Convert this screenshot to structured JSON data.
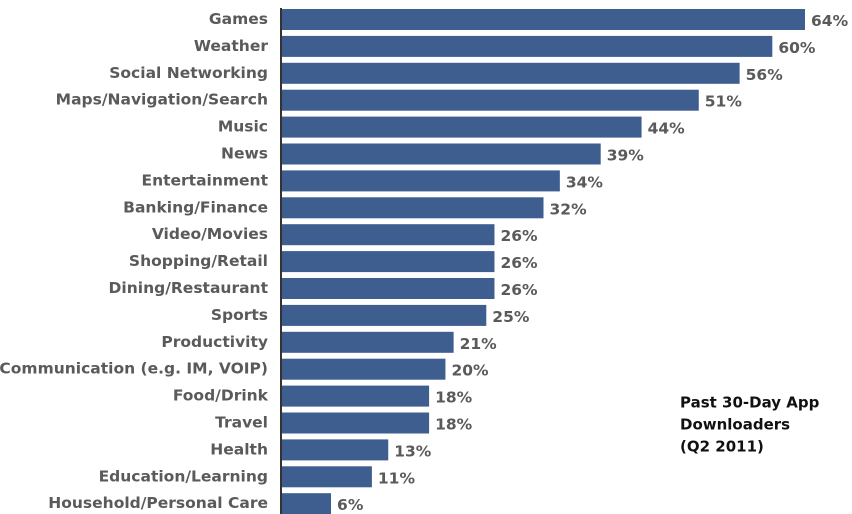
{
  "chart_data": {
    "type": "hbar",
    "categories": [
      "Games",
      "Weather",
      "Social Networking",
      "Maps/Navigation/Search",
      "Music",
      "News",
      "Entertainment",
      "Banking/Finance",
      "Video/Movies",
      "Shopping/Retail",
      "Dining/Restaurant",
      "Sports",
      "Productivity",
      "Communication (e.g. IM, VOIP)",
      "Food/Drink",
      "Travel",
      "Health",
      "Education/Learning",
      "Household/Personal Care"
    ],
    "values": [
      64,
      60,
      56,
      51,
      44,
      39,
      34,
      32,
      26,
      26,
      26,
      25,
      21,
      20,
      18,
      18,
      13,
      11,
      6
    ],
    "value_labels": [
      "64%",
      "60%",
      "56%",
      "51%",
      "44%",
      "39%",
      "34%",
      "32%",
      "26%",
      "26%",
      "26%",
      "25%",
      "21%",
      "20%",
      "18%",
      "18%",
      "13%",
      "11%",
      "6%"
    ],
    "color": "#3d5e8f",
    "annotation": [
      "Past 30-Day App",
      "Downloaders",
      "(Q2 2011)"
    ]
  }
}
